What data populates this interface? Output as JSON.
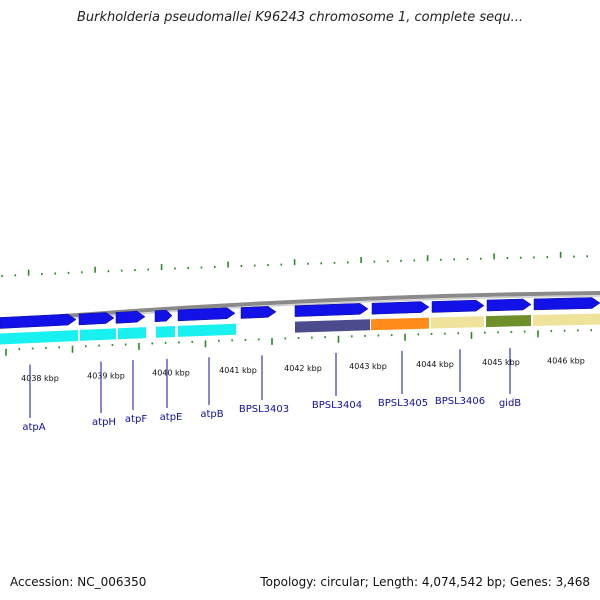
{
  "title": "Burkholderia pseudomallei K96243 chromosome 1, complete sequ...",
  "footer": {
    "accession": "Accession: NC_006350",
    "summary": "Topology: circular; Length: 4,074,542 bp; Genes: 3,468"
  },
  "ruler": {
    "unit": "kbp",
    "labels": [
      "4038 kbp",
      "4039 kbp",
      "4040 kbp",
      "4041 kbp",
      "4042 kbp",
      "4043 kbp",
      "4044 kbp",
      "4045 kbp",
      "4046 kbp"
    ]
  },
  "colors": {
    "backbone": "#8a8a8a",
    "forward_gene": "#1212e8",
    "cyan_track": "#19f0f0",
    "purple": "#4a4a8c",
    "orange": "#ff8c1a",
    "khaki": "#efe29a",
    "olive": "#6f8f2a",
    "tick": "#2a8a2a",
    "label": "#1010a0"
  },
  "genes": [
    {
      "label": "atpA"
    },
    {
      "label": "atpH"
    },
    {
      "label": "atpF"
    },
    {
      "label": "atpE"
    },
    {
      "label": "atpB"
    },
    {
      "label": "BPSL3403"
    },
    {
      "label": "BPSL3404"
    },
    {
      "label": "BPSL3405"
    },
    {
      "label": "BPSL3406"
    },
    {
      "label": "gidB"
    }
  ]
}
